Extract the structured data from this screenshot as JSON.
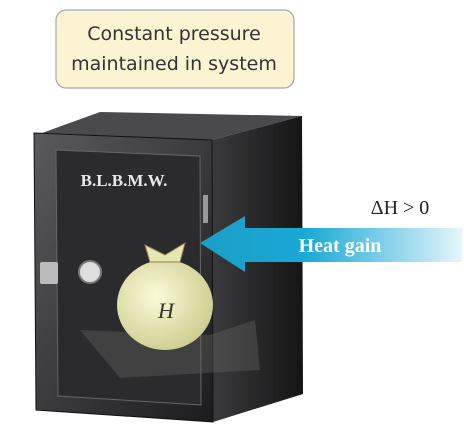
{
  "callout": {
    "lines": [
      "Constant pressure",
      "maintained in system"
    ]
  },
  "safe": {
    "label": "B.L.B.M.W."
  },
  "bag": {
    "label": "H"
  },
  "arrow": {
    "label": "Heat gain"
  },
  "condition": "ΔH > 0"
}
